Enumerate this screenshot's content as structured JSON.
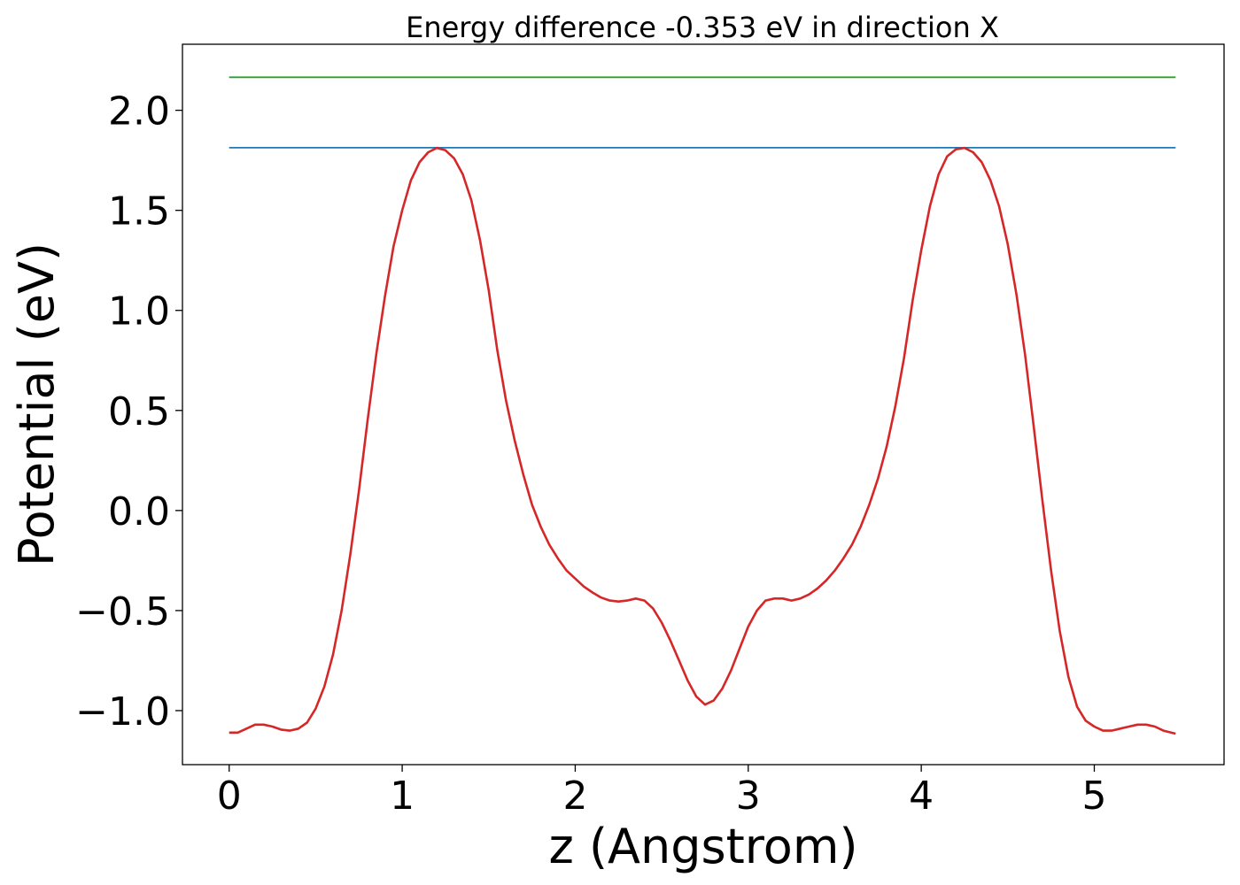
{
  "chart_data": {
    "type": "line",
    "title": "Energy difference -0.353 eV in direction X",
    "xlabel": "z (Angstrom)",
    "ylabel": "Potential (eV)",
    "xlim": [
      -0.27,
      5.75
    ],
    "ylim": [
      -1.27,
      2.33
    ],
    "grid": false,
    "x_ticks": [
      0,
      1,
      2,
      3,
      4,
      5
    ],
    "x_tick_labels": [
      "0",
      "1",
      "2",
      "3",
      "4",
      "5"
    ],
    "y_ticks": [
      -1.0,
      -0.5,
      0.0,
      0.5,
      1.0,
      1.5,
      2.0
    ],
    "y_tick_labels": [
      "−1.0",
      "−0.5",
      "0.0",
      "0.5",
      "1.0",
      "1.5",
      "2.0"
    ],
    "series": [
      {
        "color": "#2ca02c",
        "x": [
          0,
          5.47
        ],
        "y": [
          2.165,
          2.165
        ]
      },
      {
        "color": "#1f77b4",
        "x": [
          0,
          5.47
        ],
        "y": [
          1.813,
          1.813
        ]
      },
      {
        "color": "#d62728",
        "x": [
          0.0,
          0.05,
          0.1,
          0.15,
          0.2,
          0.25,
          0.3,
          0.35,
          0.4,
          0.45,
          0.5,
          0.55,
          0.6,
          0.65,
          0.7,
          0.75,
          0.8,
          0.85,
          0.9,
          0.95,
          1.0,
          1.05,
          1.1,
          1.15,
          1.2,
          1.25,
          1.3,
          1.35,
          1.4,
          1.45,
          1.5,
          1.55,
          1.6,
          1.65,
          1.7,
          1.75,
          1.8,
          1.85,
          1.9,
          1.95,
          2.0,
          2.05,
          2.1,
          2.15,
          2.2,
          2.25,
          2.3,
          2.35,
          2.4,
          2.45,
          2.5,
          2.55,
          2.6,
          2.65,
          2.7,
          2.75,
          2.8,
          2.85,
          2.9,
          2.95,
          3.0,
          3.05,
          3.1,
          3.15,
          3.2,
          3.25,
          3.3,
          3.35,
          3.4,
          3.45,
          3.5,
          3.55,
          3.6,
          3.65,
          3.7,
          3.75,
          3.8,
          3.85,
          3.9,
          3.95,
          4.0,
          4.05,
          4.1,
          4.15,
          4.2,
          4.25,
          4.3,
          4.35,
          4.4,
          4.45,
          4.5,
          4.55,
          4.6,
          4.65,
          4.7,
          4.75,
          4.8,
          4.85,
          4.9,
          4.95,
          5.0,
          5.05,
          5.1,
          5.15,
          5.2,
          5.25,
          5.3,
          5.35,
          5.4,
          5.47
        ],
        "y": [
          -1.11,
          -1.11,
          -1.09,
          -1.07,
          -1.07,
          -1.08,
          -1.095,
          -1.1,
          -1.09,
          -1.06,
          -0.99,
          -0.88,
          -0.72,
          -0.5,
          -0.22,
          0.1,
          0.45,
          0.78,
          1.07,
          1.32,
          1.5,
          1.65,
          1.74,
          1.79,
          1.812,
          1.8,
          1.76,
          1.68,
          1.55,
          1.35,
          1.1,
          0.8,
          0.55,
          0.35,
          0.18,
          0.03,
          -0.08,
          -0.17,
          -0.24,
          -0.3,
          -0.34,
          -0.38,
          -0.41,
          -0.435,
          -0.45,
          -0.455,
          -0.45,
          -0.44,
          -0.45,
          -0.49,
          -0.56,
          -0.65,
          -0.75,
          -0.85,
          -0.93,
          -0.97,
          -0.95,
          -0.89,
          -0.8,
          -0.69,
          -0.58,
          -0.5,
          -0.45,
          -0.44,
          -0.44,
          -0.45,
          -0.44,
          -0.42,
          -0.39,
          -0.35,
          -0.3,
          -0.24,
          -0.17,
          -0.08,
          0.03,
          0.16,
          0.32,
          0.52,
          0.76,
          1.05,
          1.3,
          1.52,
          1.68,
          1.77,
          1.805,
          1.812,
          1.79,
          1.74,
          1.65,
          1.52,
          1.33,
          1.08,
          0.78,
          0.42,
          0.05,
          -0.3,
          -0.6,
          -0.83,
          -0.98,
          -1.05,
          -1.08,
          -1.1,
          -1.1,
          -1.09,
          -1.08,
          -1.07,
          -1.07,
          -1.08,
          -1.1,
          -1.115
        ]
      }
    ]
  }
}
